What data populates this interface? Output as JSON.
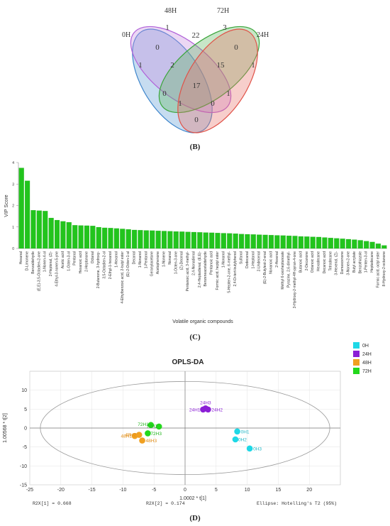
{
  "chart_data": [
    {
      "type": "venn",
      "panel_label": "(B)",
      "sets": [
        "0H",
        "48H",
        "72H",
        "24H"
      ],
      "colors": {
        "0H": "#5b9bd5",
        "48H": "#c58be0",
        "72H": "#5fb85f",
        "24H": "#e8736b"
      },
      "regions": [
        {
          "sets": [
            "0H"
          ],
          "value": "1"
        },
        {
          "sets": [
            "48H"
          ],
          "value": "1"
        },
        {
          "sets": [
            "72H"
          ],
          "value": "3"
        },
        {
          "sets": [
            "24H"
          ],
          "value": "1"
        },
        {
          "sets": [
            "0H",
            "48H"
          ],
          "value": "0"
        },
        {
          "sets": [
            "48H",
            "72H"
          ],
          "value": "22"
        },
        {
          "sets": [
            "72H",
            "24H"
          ],
          "value": "0"
        },
        {
          "sets": [
            "0H",
            "48H",
            "72H"
          ],
          "value": "2"
        },
        {
          "sets": [
            "48H",
            "72H",
            "24H"
          ],
          "value": "15"
        },
        {
          "sets": [
            "0H",
            "72H"
          ],
          "value": "0"
        },
        {
          "sets": [
            "48H",
            "24H"
          ],
          "value": "1"
        },
        {
          "sets": [
            "0H",
            "48H",
            "72H",
            "24H"
          ],
          "value": "17"
        },
        {
          "sets": [
            "0H",
            "72H",
            "24H"
          ],
          "value": "1"
        },
        {
          "sets": [
            "0H",
            "48H",
            "24H"
          ],
          "value": "0"
        },
        {
          "sets": [
            "0H",
            "24H"
          ],
          "value": "0"
        }
      ]
    },
    {
      "type": "bar",
      "panel_label": "(C)",
      "ylabel": "VIP Score",
      "xlabel": "Volatile organic compounds",
      "ylim": [
        0,
        4
      ],
      "yticks": [
        "0",
        "1",
        "2",
        "3",
        "4"
      ],
      "bar_color": "#22c41d",
      "categories": [
        "Hexanal",
        "D-Limonene",
        "Benzaldehyde",
        "(E,E)-3,5-Octadien-2-one",
        "1-Nonen-4-ol",
        "2-Heptenal, (Z)-",
        "4-Ethyl-3-nonen-5-yne",
        "Acetic acid",
        "1-Octen-3-ol",
        "Pentanal",
        "Hexanoic acid",
        "2-Heptanone",
        "Octanal",
        "2-Butanone, 3-hydroxy-",
        "3,5-Octadien-2-ol",
        "2-Ethyl-1-hexanol",
        "1-Hexanol",
        "4-Ethylbenzoic acid, 2-butyl ester",
        "(E)-2-Octen-1-al",
        "Decanal",
        "1-Nonanol",
        "1-Pentanol",
        "Geranylacetone",
        "Acetophenone",
        "1-Nonene",
        "Nonanal",
        "1-Octen-3-one",
        "(Z)-Decenal",
        "Pentanoic acid, 3-methyl-",
        "2,4-Nonadienal",
        "2,4-Heptadienal, (E,E)-",
        "Benzeneacetaldehyde",
        "Pentanoic acid",
        "Formic acid, heptyl ester",
        "1-Nonanol",
        "5-Hepten-2-one, 6-methyl-",
        "2,4-Di-tert-butylphenol",
        "Sulfanol",
        "Dodecanal",
        "1-Heptanol",
        "2-Undecenal",
        "(E)-2-Butylest-2-enal",
        "Nonanoic acid",
        "2-Hexenal",
        "Methyl 6-oxoheptanoate",
        "Pyrazine, 2,6-dimethyl-",
        "3-Hydroxy-2-methyl-4H-pyran-4-one",
        "Butanoic acid",
        "2-Decanone",
        "Octanoic acid",
        "Hexadecane",
        "Decanoic acid",
        "Tetradecane",
        "3-Hexenal, (Z)-",
        "Damascenone",
        "3-Nonen-2-one",
        "Butyl acrylate",
        "Benzothiazole",
        "1-Penten-3-ol",
        "Heptadecane",
        "Formic acid, octyl ester",
        "8-Hydroxy-2-octanone"
      ],
      "values": [
        3.75,
        3.15,
        1.78,
        1.76,
        1.74,
        1.42,
        1.32,
        1.26,
        1.22,
        1.08,
        1.07,
        1.06,
        1.05,
        0.99,
        0.96,
        0.95,
        0.93,
        0.91,
        0.89,
        0.86,
        0.85,
        0.84,
        0.83,
        0.82,
        0.81,
        0.8,
        0.79,
        0.78,
        0.77,
        0.76,
        0.75,
        0.74,
        0.73,
        0.72,
        0.71,
        0.7,
        0.69,
        0.67,
        0.66,
        0.65,
        0.64,
        0.63,
        0.62,
        0.61,
        0.6,
        0.59,
        0.58,
        0.56,
        0.55,
        0.54,
        0.53,
        0.51,
        0.49,
        0.47,
        0.45,
        0.43,
        0.41,
        0.38,
        0.34,
        0.3,
        0.22,
        0.14
      ]
    },
    {
      "type": "scatter",
      "panel_label": "(D)",
      "title": "OPLS-DA",
      "xlabel": "1.0002 * t[1]",
      "ylabel": "1.00568 * t[2]",
      "xlim": [
        -25,
        25
      ],
      "ylim": [
        -15,
        15
      ],
      "xticks": [
        -25,
        -20,
        -15,
        -10,
        -5,
        0,
        5,
        10,
        15,
        20
      ],
      "yticks": [
        -15,
        -10,
        -5,
        0,
        5,
        10
      ],
      "ellipse": {
        "cx": 0,
        "cy": 0,
        "rx": 23.3,
        "ry": 12.3
      },
      "footer": {
        "r2x1": "R2X[1] = 0.668",
        "r2x2": "R2X[2] = 0.174",
        "ellipse": "Ellipse: Hotelling's T2 (95%)"
      },
      "legend": [
        {
          "name": "0H",
          "color": "#1ed8e6"
        },
        {
          "name": "24H",
          "color": "#8b1fd6"
        },
        {
          "name": "48H",
          "color": "#f0a020"
        },
        {
          "name": "72H",
          "color": "#23d81c"
        }
      ],
      "series": [
        {
          "name": "0H",
          "color": "#1ed8e6",
          "label_color": "#1fb7c7",
          "points": [
            {
              "x": 8.4,
              "y": -0.9,
              "label": "0H1"
            },
            {
              "x": 8.1,
              "y": -3.0,
              "label": "0H2"
            },
            {
              "x": 10.4,
              "y": -5.4,
              "label": "0H3"
            }
          ]
        },
        {
          "name": "24H",
          "color": "#8b1fd6",
          "label_color": "#8b1fd6",
          "points": [
            {
              "x": 2.9,
              "y": 4.9,
              "label": "24H1"
            },
            {
              "x": 3.7,
              "y": 4.9,
              "label": "24H2"
            },
            {
              "x": 3.3,
              "y": 5.2,
              "label": "24H3"
            }
          ]
        },
        {
          "name": "48H",
          "color": "#f0a020",
          "label_color": "#e08a10",
          "points": [
            {
              "x": -8.1,
              "y": -2.1,
              "label": "48H1"
            },
            {
              "x": -7.4,
              "y": -1.8,
              "label": "48H2"
            },
            {
              "x": -6.9,
              "y": -3.3,
              "label": "48H3"
            }
          ]
        },
        {
          "name": "72H",
          "color": "#23d81c",
          "label_color": "#1fb41a",
          "points": [
            {
              "x": -5.5,
              "y": 0.8,
              "label": "72H1"
            },
            {
              "x": -4.2,
              "y": 0.4,
              "label": "72H2"
            },
            {
              "x": -6.0,
              "y": -1.4,
              "label": "72H3"
            }
          ]
        }
      ]
    }
  ]
}
